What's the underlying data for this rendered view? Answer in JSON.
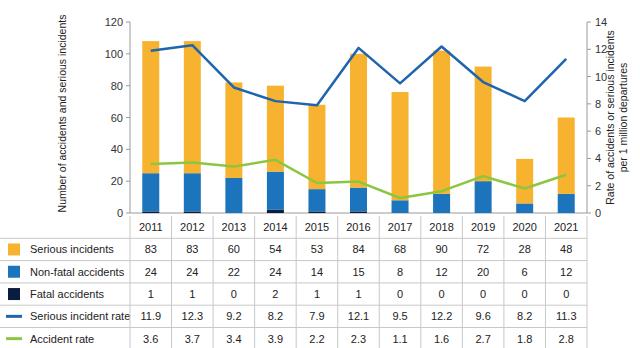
{
  "chart_data": {
    "type": "bar",
    "stacked": true,
    "grid": false,
    "y_label": "Number of accidents and serious incidents",
    "y2_label": "Rate of accidents or serious incidents per 1 million departures",
    "categories": [
      "2011",
      "2012",
      "2013",
      "2014",
      "2015",
      "2016",
      "2017",
      "2018",
      "2019",
      "2020",
      "2021"
    ],
    "ylim": [
      0,
      120
    ],
    "yticks": [
      0,
      20,
      40,
      60,
      80,
      100,
      120
    ],
    "y2lim": [
      0,
      14
    ],
    "y2ticks": [
      0,
      2,
      4,
      6,
      8,
      10,
      12,
      14
    ],
    "series": [
      {
        "name": "Serious incidents",
        "type": "bar",
        "color": "#f7b330",
        "values": [
          83,
          83,
          60,
          54,
          53,
          84,
          68,
          90,
          72,
          28,
          48
        ]
      },
      {
        "name": "Non-fatal accidents",
        "type": "bar",
        "color": "#1c75bc",
        "values": [
          24,
          24,
          22,
          24,
          14,
          15,
          8,
          12,
          20,
          6,
          12
        ]
      },
      {
        "name": "Fatal accidents",
        "type": "bar",
        "color": "#0b1d3f",
        "values": [
          1,
          1,
          0,
          2,
          1,
          1,
          0,
          0,
          0,
          0,
          0
        ]
      },
      {
        "name": "Serious incident rate",
        "type": "line",
        "axis": "y2",
        "color": "#1f64ae",
        "values": [
          11.9,
          12.3,
          9.2,
          8.2,
          7.9,
          12.1,
          9.5,
          12.2,
          9.6,
          8.2,
          11.3
        ]
      },
      {
        "name": "Accident rate",
        "type": "line",
        "axis": "y2",
        "color": "#8cc63f",
        "values": [
          3.6,
          3.7,
          3.4,
          3.9,
          2.2,
          2.3,
          1.1,
          1.6,
          2.7,
          1.8,
          2.8
        ]
      }
    ]
  }
}
